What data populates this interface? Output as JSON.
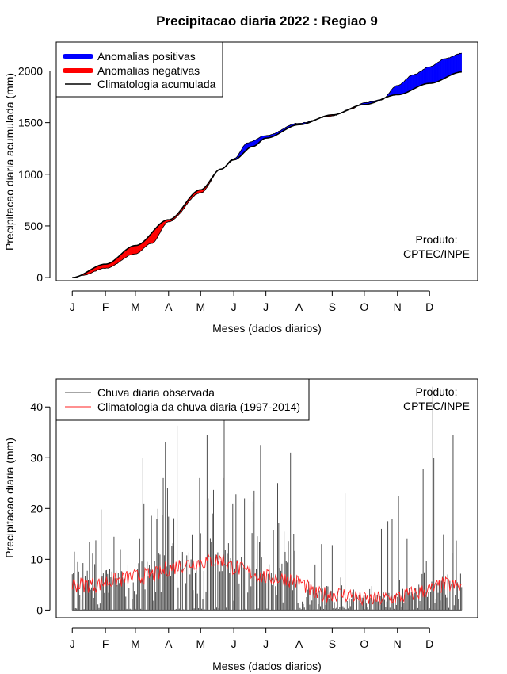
{
  "title": "Precipitacao diaria 2022 : Regiao 9",
  "colors": {
    "positive": "#0000ff",
    "negative": "#ff0000",
    "climatology_line": "#000000",
    "observed_bars": "#4d4d4d",
    "daily_climatology": "#ff2020"
  },
  "chart_data": [
    {
      "type": "area",
      "name": "accumulated",
      "xlabel": "Meses (dados diarios)",
      "ylabel": "Precipitacao diaria acumulada (mm)",
      "ylim": [
        -30,
        2280
      ],
      "yticks": [
        0,
        500,
        1000,
        1500,
        2000
      ],
      "xticks": {
        "days": [
          1,
          32,
          60,
          91,
          121,
          152,
          182,
          213,
          244,
          274,
          305,
          335
        ],
        "labels": [
          "J",
          "F",
          "M",
          "A",
          "M",
          "J",
          "J",
          "A",
          "S",
          "O",
          "N",
          "D"
        ]
      },
      "credit": [
        "Produto:",
        "CPTEC/INPE"
      ],
      "legend": {
        "position": "top-left",
        "entries": [
          "Anomalias positivas",
          "Anomalias negativas",
          "Climatologia acumulada"
        ]
      },
      "climatology_knots": {
        "day": [
          1,
          32,
          60,
          91,
          121,
          140,
          152,
          170,
          182,
          213,
          244,
          274,
          305,
          335,
          365
        ],
        "value": [
          0,
          130,
          310,
          560,
          850,
          1050,
          1140,
          1270,
          1350,
          1480,
          1575,
          1675,
          1770,
          1880,
          1990
        ]
      },
      "observed_knots": {
        "day": [
          1,
          10,
          32,
          60,
          75,
          91,
          121,
          140,
          152,
          165,
          182,
          213,
          244,
          260,
          274,
          290,
          305,
          320,
          335,
          350,
          365
        ],
        "value": [
          0,
          20,
          90,
          230,
          330,
          540,
          820,
          1050,
          1150,
          1305,
          1375,
          1495,
          1565,
          1625,
          1690,
          1720,
          1860,
          1965,
          2040,
          2120,
          2170
        ]
      }
    },
    {
      "type": "bar",
      "name": "daily",
      "xlabel": "Meses (dados diarios)",
      "ylabel": "Precipitacao diaria (mm)",
      "ylim": [
        -1.5,
        45.5
      ],
      "yticks": [
        0,
        10,
        20,
        30,
        40
      ],
      "xticks": {
        "days": [
          1,
          32,
          60,
          91,
          121,
          152,
          182,
          213,
          244,
          274,
          305,
          335
        ],
        "labels": [
          "J",
          "F",
          "M",
          "A",
          "M",
          "J",
          "J",
          "A",
          "S",
          "O",
          "N",
          "D"
        ]
      },
      "credit": [
        "Produto:",
        "CPTEC/INPE"
      ],
      "legend": {
        "position": "top-left",
        "entries": [
          "Chuva diaria observada",
          "Climatologia da chuva diaria (1997-2014)"
        ]
      },
      "peaks": [
        {
          "day": 3,
          "value": 11.5
        },
        {
          "day": 28,
          "value": 19.8
        },
        {
          "day": 46,
          "value": 12.0
        },
        {
          "day": 64,
          "value": 14.0
        },
        {
          "day": 67,
          "value": 30.0
        },
        {
          "day": 68,
          "value": 21.0
        },
        {
          "day": 80,
          "value": 18.0
        },
        {
          "day": 86,
          "value": 26.0
        },
        {
          "day": 88,
          "value": 33.0
        },
        {
          "day": 90,
          "value": 24.0
        },
        {
          "day": 99,
          "value": 36.3
        },
        {
          "day": 120,
          "value": 26.0
        },
        {
          "day": 127,
          "value": 34.5
        },
        {
          "day": 128,
          "value": 22.0
        },
        {
          "day": 142,
          "value": 26.0
        },
        {
          "day": 143,
          "value": 38.5
        },
        {
          "day": 162,
          "value": 22.0
        },
        {
          "day": 171,
          "value": 23.5
        },
        {
          "day": 177,
          "value": 32.5
        },
        {
          "day": 193,
          "value": 25.0
        },
        {
          "day": 205,
          "value": 31.0
        },
        {
          "day": 234,
          "value": 13.0
        },
        {
          "day": 244,
          "value": 12.8
        },
        {
          "day": 256,
          "value": 23.0
        },
        {
          "day": 290,
          "value": 16.0
        },
        {
          "day": 296,
          "value": 17.5
        },
        {
          "day": 300,
          "value": 18.0
        },
        {
          "day": 306,
          "value": 22.5
        },
        {
          "day": 314,
          "value": 14.0
        },
        {
          "day": 329,
          "value": 27.8
        },
        {
          "day": 338,
          "value": 44.0
        },
        {
          "day": 339,
          "value": 30.0
        },
        {
          "day": 348,
          "value": 14.8
        },
        {
          "day": 357,
          "value": 34.5
        }
      ],
      "climatology_knots": {
        "day": [
          1,
          20,
          40,
          60,
          80,
          91,
          105,
          121,
          135,
          140,
          152,
          165,
          182,
          200,
          213,
          230,
          244,
          260,
          274,
          290,
          305,
          320,
          335,
          350,
          365
        ],
        "value": [
          5.0,
          5.0,
          5.8,
          6.5,
          7.0,
          8.2,
          9.0,
          9.5,
          9.8,
          10.0,
          8.5,
          7.5,
          6.5,
          6.2,
          5.5,
          3.0,
          3.2,
          3.0,
          2.0,
          2.2,
          2.5,
          3.2,
          4.0,
          5.0,
          4.5
        ]
      }
    }
  ]
}
